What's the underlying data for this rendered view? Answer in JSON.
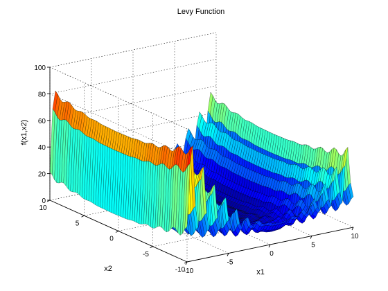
{
  "chart_data": {
    "type": "surface",
    "title": "Levy Function",
    "xlabel": "x1",
    "ylabel": "x2",
    "zlabel": "f(x1,x2)",
    "function": "levy",
    "xlim": [
      -10,
      10
    ],
    "ylim": [
      -10,
      10
    ],
    "zlim": [
      0,
      100
    ],
    "x_ticks": [
      -10,
      -5,
      0,
      5,
      10
    ],
    "y_ticks": [
      -10,
      -5,
      0,
      5,
      10
    ],
    "z_ticks": [
      0,
      20,
      40,
      60,
      80,
      100
    ],
    "grid": true,
    "colormap": "jet"
  }
}
